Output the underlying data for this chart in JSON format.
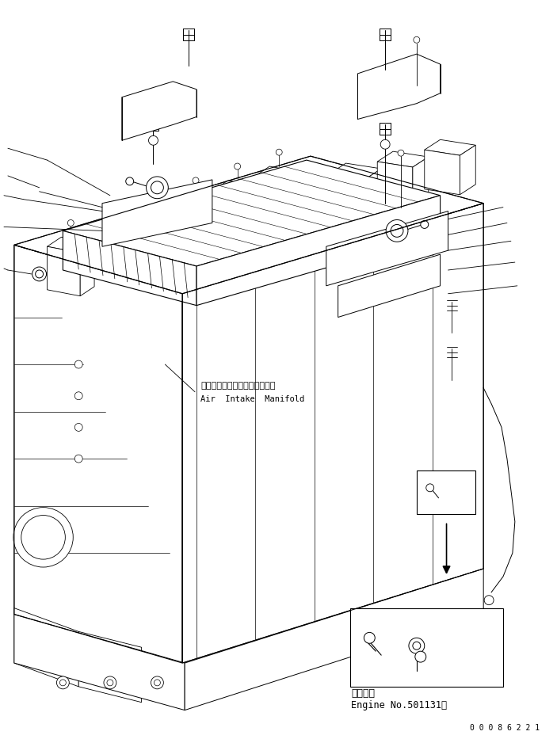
{
  "bg_color": "#ffffff",
  "line_color": "#000000",
  "label_air_intake_jp": "エアーインタークマニホールド",
  "label_air_intake_en": "Air  Intake  Manifold",
  "label_engine_jp": "適用号機",
  "label_engine_en": "Engine No.501131～",
  "watermark": "0 0 0 8 6 2 2 1"
}
